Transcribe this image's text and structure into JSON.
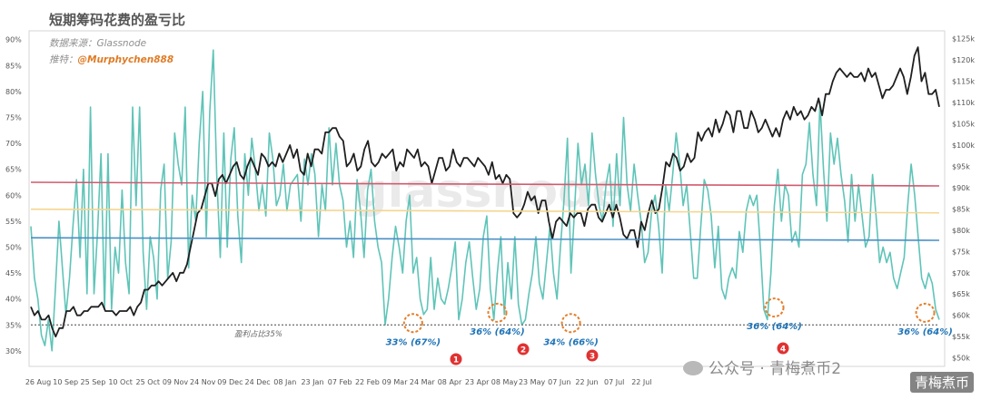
{
  "title": "短期筹码花费的盈亏比",
  "source_label": "数据来源：Glassnode",
  "credit_prefix": "推特：",
  "credit_handle": "@Murphychen888",
  "watermark_left": "公众号 · 青梅煮币2",
  "watermark_right": "青梅煮币",
  "chart_data": {
    "type": "line",
    "x_tick_labels": [
      "26 Aug",
      "10 Sep",
      "25 Sep",
      "10 Oct",
      "25 Oct",
      "09 Nov",
      "24 Nov",
      "09 Dec",
      "24 Dec",
      "08 Jan",
      "23 Jan",
      "07 Feb",
      "22 Feb",
      "09 Mar",
      "24 Mar",
      "08 Apr",
      "23 Apr",
      "08 May",
      "23 May",
      "07 Jun",
      "22 Jun",
      "07 Jul",
      "22 Jul"
    ],
    "y_left": {
      "min": 27,
      "max": 91,
      "ticks": [
        30,
        35,
        40,
        45,
        50,
        55,
        60,
        65,
        70,
        75,
        80,
        85,
        90
      ],
      "labels": [
        "30%",
        "35%",
        "40%",
        "45%",
        "50%",
        "55%",
        "60%",
        "65%",
        "70%",
        "75%",
        "80%",
        "85%",
        "90%"
      ]
    },
    "y_right": {
      "min": 48,
      "max": 126,
      "ticks": [
        50,
        55,
        60,
        65,
        70,
        75,
        80,
        85,
        90,
        95,
        100,
        105,
        110,
        115,
        120,
        125
      ],
      "labels": [
        "$50k",
        "$55k",
        "$60k",
        "$65k",
        "$70k",
        "$75k",
        "$80k",
        "$85k",
        "$90k",
        "$95k",
        "$100k",
        "$105k",
        "$110k",
        "$115k",
        "$120k",
        "$125k"
      ]
    },
    "series": [
      {
        "axis": "left",
        "color": "#5fc4b8",
        "values": [
          54,
          44,
          40,
          33,
          31,
          36,
          30,
          42,
          55,
          46,
          37,
          44,
          54,
          63,
          48,
          65,
          41,
          77,
          41,
          53,
          68,
          38,
          68,
          38,
          50,
          45,
          61,
          47,
          41,
          77,
          58,
          77,
          49,
          38,
          52,
          48,
          40,
          61,
          66,
          44,
          51,
          72,
          66,
          62,
          77,
          46,
          60,
          55,
          70,
          80,
          52,
          76,
          88,
          64,
          48,
          72,
          50,
          67,
          73,
          56,
          47,
          68,
          60,
          71,
          65,
          57,
          62,
          56,
          72,
          67,
          58,
          60,
          66,
          57,
          62,
          63,
          64,
          55,
          67,
          62,
          68,
          64,
          52,
          62,
          57,
          73,
          62,
          70,
          62,
          59,
          50,
          55,
          48,
          63,
          57,
          48,
          61,
          65,
          55,
          50,
          47,
          35,
          40,
          48,
          54,
          50,
          45,
          55,
          60,
          45,
          48,
          40,
          37,
          38,
          48,
          38,
          44,
          40,
          39,
          42,
          46,
          51,
          36,
          40,
          47,
          51,
          44,
          38,
          42,
          52,
          56,
          42,
          36,
          45,
          52,
          37,
          47,
          40,
          52,
          39,
          35,
          36,
          41,
          45,
          52,
          43,
          40,
          47,
          54,
          45,
          40,
          50,
          59,
          71,
          45,
          57,
          70,
          62,
          66,
          58,
          72,
          64,
          58,
          55,
          62,
          66,
          54,
          68,
          58,
          75,
          62,
          57,
          66,
          60,
          55,
          47,
          49,
          57,
          60,
          54,
          45,
          62,
          57,
          64,
          72,
          66,
          58,
          62,
          53,
          44,
          44,
          54,
          63,
          61,
          56,
          46,
          54,
          42,
          40,
          44,
          46,
          44,
          53,
          49,
          57,
          60,
          58,
          60,
          50,
          38,
          36,
          45,
          58,
          65,
          55,
          62,
          60,
          51,
          53,
          50,
          64,
          66,
          74,
          64,
          58,
          78,
          65,
          55,
          72,
          66,
          71,
          64,
          59,
          51,
          64,
          55,
          62,
          56,
          50,
          52,
          64,
          56,
          47,
          50,
          47,
          49,
          44,
          42,
          45,
          48,
          58,
          66,
          60,
          52,
          44,
          42,
          45,
          43,
          38,
          36
        ]
      },
      {
        "axis": "right",
        "color": "#1f1f1f",
        "values": [
          62,
          60,
          61,
          59,
          59,
          60,
          57,
          55,
          57,
          57,
          61,
          61,
          62,
          60,
          60,
          61,
          61,
          62,
          62,
          62,
          63,
          61,
          61,
          61,
          60,
          61,
          61,
          61,
          62,
          60,
          62,
          63,
          66,
          66,
          67,
          67,
          68,
          67,
          68,
          69,
          70,
          68,
          70,
          70,
          72,
          76,
          80,
          84,
          85,
          88,
          91,
          91,
          88,
          92,
          93,
          91,
          93,
          95,
          96,
          93,
          92,
          95,
          97,
          95,
          93,
          98,
          97,
          95,
          96,
          95,
          98,
          96,
          98,
          100,
          97,
          99,
          94,
          93,
          98,
          95,
          99,
          99,
          98,
          103,
          103,
          104,
          104,
          102,
          101,
          95,
          96,
          98,
          94,
          95,
          99,
          101,
          96,
          95,
          96,
          98,
          97,
          98,
          99,
          94,
          96,
          95,
          99,
          98,
          97,
          99,
          95,
          96,
          95,
          91,
          94,
          97,
          97,
          94,
          95,
          99,
          96,
          95,
          97,
          97,
          96,
          95,
          97,
          96,
          95,
          93,
          96,
          92,
          93,
          91,
          93,
          92,
          84,
          83,
          84,
          86,
          89,
          87,
          88,
          84,
          87,
          87,
          82,
          78,
          82,
          83,
          82,
          81,
          84,
          83,
          84,
          84,
          81,
          85,
          86,
          86,
          83,
          82,
          84,
          86,
          83,
          86,
          83,
          79,
          78,
          80,
          80,
          76,
          82,
          80,
          84,
          87,
          84,
          85,
          90,
          96,
          95,
          98,
          97,
          94,
          95,
          98,
          96,
          97,
          103,
          101,
          103,
          104,
          102,
          106,
          103,
          105,
          108,
          107,
          103,
          108,
          108,
          104,
          104,
          108,
          106,
          103,
          104,
          106,
          104,
          102,
          104,
          102,
          106,
          108,
          106,
          109,
          107,
          108,
          106,
          107,
          109,
          108,
          111,
          107,
          112,
          112,
          115,
          117,
          118,
          117,
          116,
          117,
          116,
          116,
          117,
          115,
          118,
          116,
          117,
          114,
          111,
          113,
          113,
          114,
          116,
          118,
          116,
          112,
          116,
          121,
          123,
          115,
          117,
          112,
          112,
          113,
          109
        ]
      },
      {
        "axis": "left",
        "color": "#d15a6e",
        "values": [
          62.5,
          61.8
        ]
      },
      {
        "axis": "left",
        "color": "#f5d58f",
        "values": [
          57.3,
          56.6
        ]
      },
      {
        "axis": "left",
        "color": "#4a8fc6",
        "values": [
          51.8,
          51.3
        ]
      },
      {
        "axis": "left",
        "color": "#777777",
        "values": [
          35,
          35
        ]
      }
    ],
    "reference_label": "盈利占比35%",
    "annotations": [
      {
        "text": "33% (67%)",
        "index": 109,
        "value": 35,
        "marker": "1"
      },
      {
        "text": "36% (64%)",
        "index": 133,
        "value": 37
      },
      {
        "text": "",
        "index": 0,
        "value": 0,
        "marker": "2"
      },
      {
        "text": "34% (66%)",
        "index": 154,
        "value": 35,
        "marker": "3"
      },
      {
        "text": "36% (64%)",
        "index": 212,
        "value": 38,
        "marker": "4"
      },
      {
        "text": "36% (64%)",
        "index": 255,
        "value": 37
      }
    ],
    "watermark": "glassnode"
  }
}
